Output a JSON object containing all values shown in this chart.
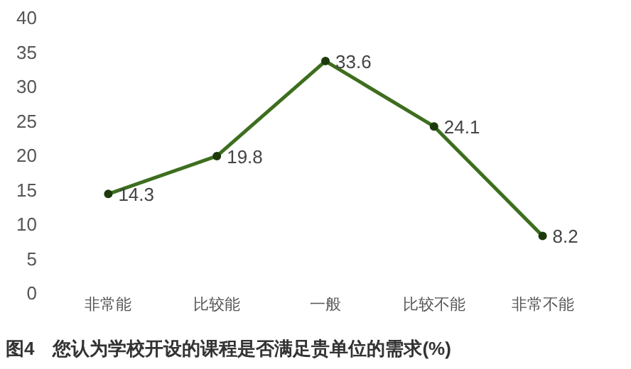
{
  "chart_data": {
    "type": "line",
    "title": "图4　您认为学校开设的课程是否满足贵单位的需求(%)",
    "categories": [
      "非常能",
      "比较能",
      "一般",
      "比较不能",
      "非常不能"
    ],
    "values": [
      14.3,
      19.8,
      33.6,
      24.1,
      8.2
    ],
    "color": "#3d6e1e",
    "marker": "circle",
    "line_style": "solid",
    "ylim": [
      0,
      40
    ],
    "yticks": [
      0,
      5,
      10,
      15,
      20,
      25,
      30,
      35,
      40
    ],
    "data_labels": true,
    "grid": false
  }
}
